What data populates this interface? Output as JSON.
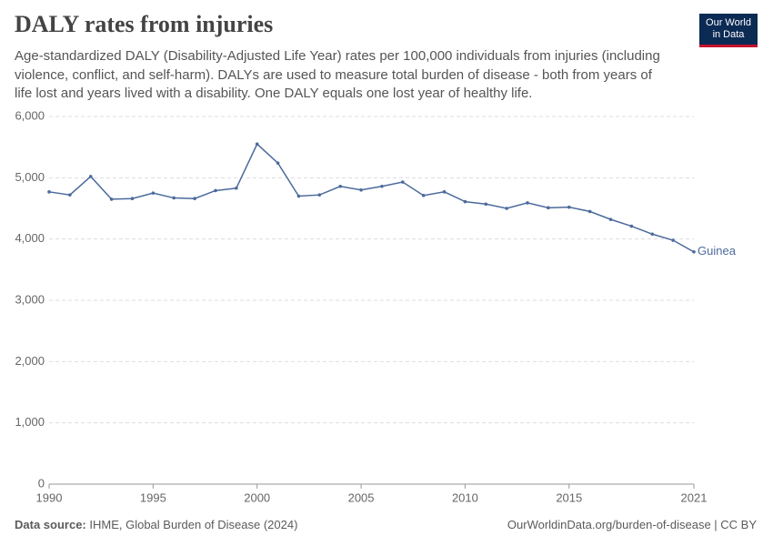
{
  "logo": {
    "line1": "Our World",
    "line2": "in Data"
  },
  "chart_data": {
    "type": "line",
    "title": "DALY rates from injuries",
    "subtitle": "Age-standardized DALY (Disability-Adjusted Life Year) rates per 100,000 individuals from injuries (including violence, conflict, and self-harm). DALYs are used to measure total burden of disease - both from years of life lost and years lived with a disability. One DALY equals one lost year of healthy life.",
    "x": [
      1990,
      1991,
      1992,
      1993,
      1994,
      1995,
      1996,
      1997,
      1998,
      1999,
      2000,
      2001,
      2002,
      2003,
      2004,
      2005,
      2006,
      2007,
      2008,
      2009,
      2010,
      2011,
      2012,
      2013,
      2014,
      2015,
      2016,
      2017,
      2018,
      2019,
      2020,
      2021
    ],
    "series": [
      {
        "name": "Guinea",
        "color": "#4c6a9c",
        "values": [
          4770,
          4720,
          5020,
          4650,
          4660,
          4750,
          4670,
          4660,
          4790,
          4830,
          5550,
          5240,
          4700,
          4720,
          4860,
          4800,
          4860,
          4930,
          4710,
          4770,
          4610,
          4570,
          4500,
          4590,
          4510,
          4520,
          4450,
          4320,
          4210,
          4080,
          3980,
          3790
        ]
      }
    ],
    "xlim": [
      1990,
      2021
    ],
    "xticks": [
      1990,
      1995,
      2000,
      2005,
      2010,
      2015,
      2021
    ],
    "ylim": [
      0,
      6000
    ],
    "yticks": [
      0,
      {
        "value": 1000,
        "label": "1,000"
      },
      {
        "value": 2000,
        "label": "2,000"
      },
      {
        "value": 3000,
        "label": "3,000"
      },
      {
        "value": 4000,
        "label": "4,000"
      },
      {
        "value": 5000,
        "label": "5,000"
      },
      {
        "value": 6000,
        "label": "6,000"
      }
    ],
    "grid": true
  },
  "footer": {
    "source_label": "Data source:",
    "source": "IHME, Global Burden of Disease (2024)",
    "url": "OurWorldinData.org/burden-of-disease | CC BY"
  }
}
